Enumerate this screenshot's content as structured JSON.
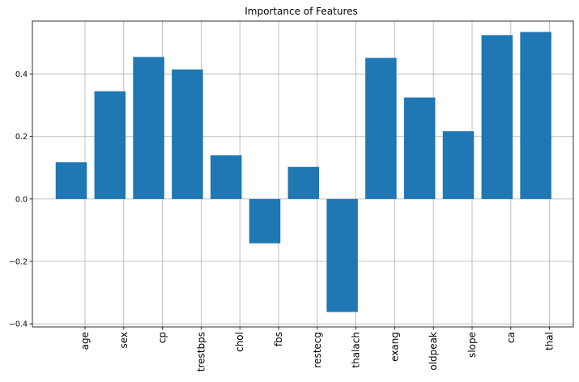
{
  "chart_data": {
    "type": "bar",
    "title": "Importance of Features",
    "xlabel": "",
    "ylabel": "",
    "categories": [
      "age",
      "sex",
      "cp",
      "trestbps",
      "chol",
      "fbs",
      "restecg",
      "thalach",
      "exang",
      "oldpeak",
      "slope",
      "ca",
      "thal"
    ],
    "values": [
      0.118,
      0.345,
      0.455,
      0.415,
      0.14,
      -0.142,
      0.103,
      -0.362,
      0.452,
      0.325,
      0.217,
      0.525,
      0.535
    ],
    "ylim": [
      -0.41,
      0.57
    ],
    "yticks": [
      -0.4,
      -0.2,
      0.0,
      0.2,
      0.4
    ],
    "ytick_labels": [
      "−0.4",
      "−0.2",
      "0.0",
      "0.2",
      "0.4"
    ],
    "grid": true,
    "bar_color": "#1f77b4",
    "tick_label_rotation": 90
  }
}
